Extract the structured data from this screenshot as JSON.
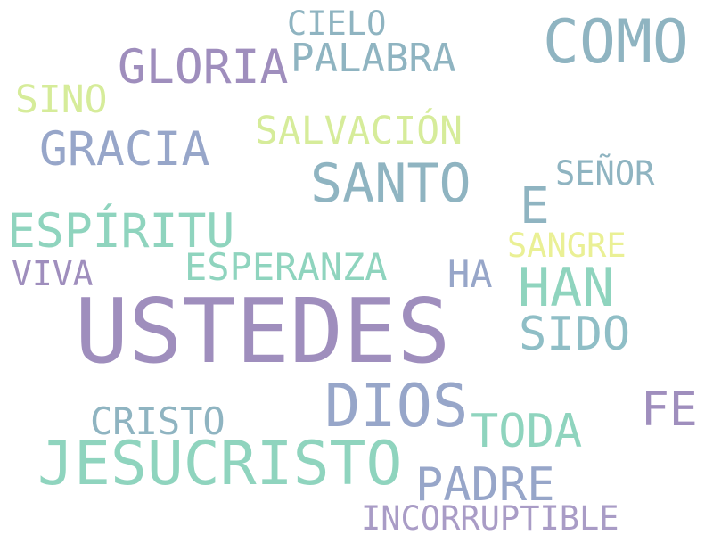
{
  "word_cloud": {
    "words": [
      {
        "text": "USTEDES",
        "color": "#9f8ebd"
      },
      {
        "text": "COMO",
        "color": "#8fb4c1"
      },
      {
        "text": "JESUCRISTO",
        "color": "#8fd4be"
      },
      {
        "text": "DIOS",
        "color": "#97a6c9"
      },
      {
        "text": "SANTO",
        "color": "#8fb4c1"
      },
      {
        "text": "HAN",
        "color": "#8fd4be"
      },
      {
        "text": "GRACIA",
        "color": "#97a6c9"
      },
      {
        "text": "GLORIA",
        "color": "#9f8ebd"
      },
      {
        "text": "ESPÍRITU",
        "color": "#8fd4be"
      },
      {
        "text": "PADRE",
        "color": "#97a6c9"
      },
      {
        "text": "TODA",
        "color": "#8fd4be"
      },
      {
        "text": "SIDO",
        "color": "#8fbec6"
      },
      {
        "text": "PALABRA",
        "color": "#8fb4c1"
      },
      {
        "text": "E",
        "color": "#8fb4c1"
      },
      {
        "text": "FE",
        "color": "#9f8ebd"
      },
      {
        "text": "SALVACIÓN",
        "color": "#d6ec9a"
      },
      {
        "text": "ESPERANZA",
        "color": "#8fd4be"
      },
      {
        "text": "CRISTO",
        "color": "#8fb4c1"
      },
      {
        "text": "SINO",
        "color": "#d6ec9a"
      },
      {
        "text": "HA",
        "color": "#97a6c9"
      },
      {
        "text": "INCORRUPTIBLE",
        "color": "#a99cc6"
      },
      {
        "text": "SEÑOR",
        "color": "#8fb4c1"
      },
      {
        "text": "CIELO",
        "color": "#8fb4c1"
      },
      {
        "text": "SANGRE",
        "color": "#eaf095"
      },
      {
        "text": "VIVA",
        "color": "#9f8ebd"
      }
    ]
  }
}
